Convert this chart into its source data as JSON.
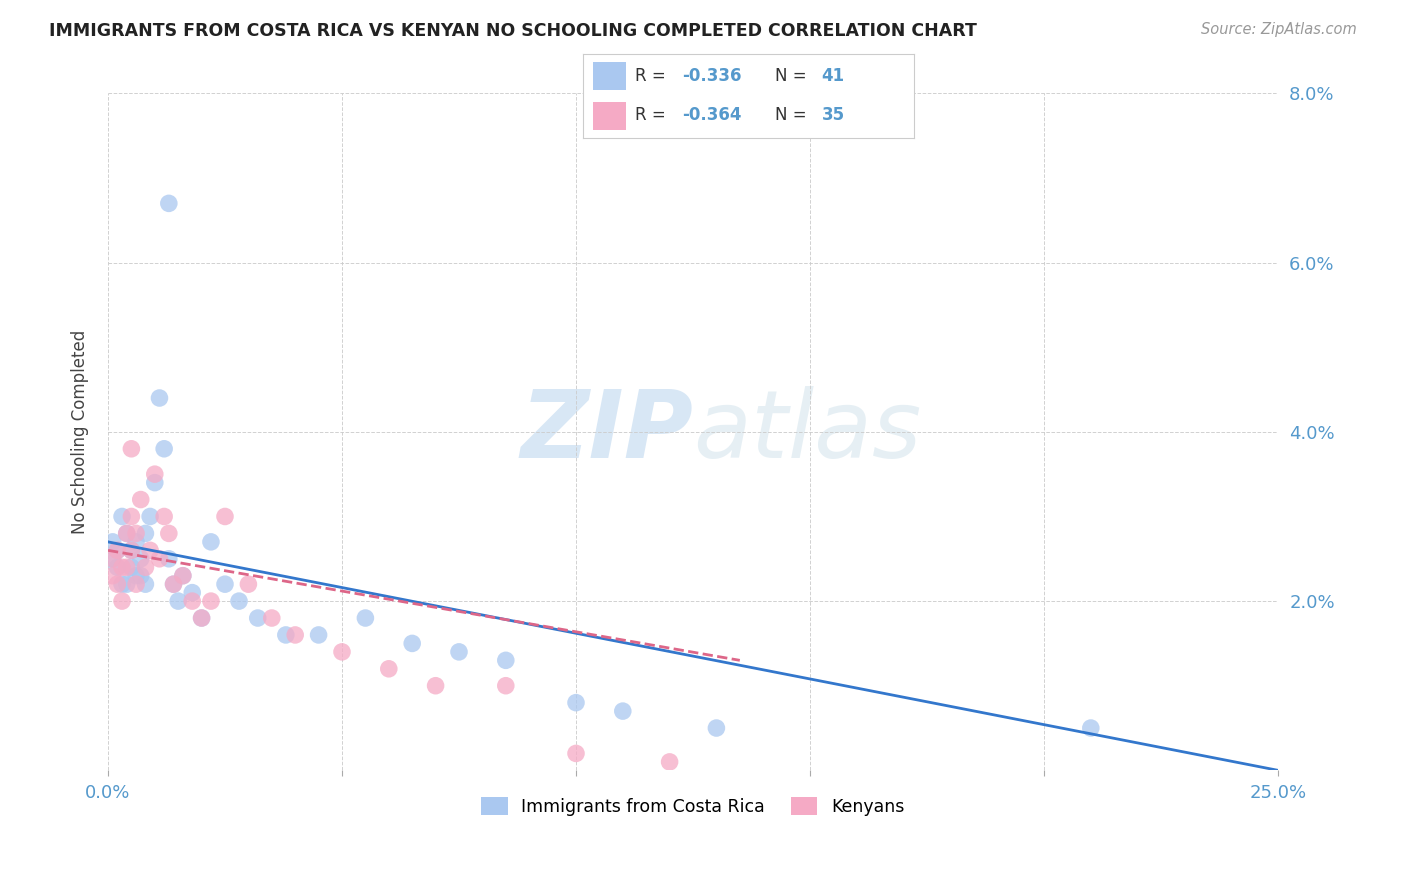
{
  "title": "IMMIGRANTS FROM COSTA RICA VS KENYAN NO SCHOOLING COMPLETED CORRELATION CHART",
  "source": "Source: ZipAtlas.com",
  "ylabel": "No Schooling Completed",
  "xlim": [
    0.0,
    0.25
  ],
  "ylim": [
    0.0,
    0.08
  ],
  "xtick_positions": [
    0.0,
    0.05,
    0.1,
    0.15,
    0.2,
    0.25
  ],
  "ytick_positions": [
    0.0,
    0.02,
    0.04,
    0.06,
    0.08
  ],
  "xtick_labels": [
    "0.0%",
    "",
    "",
    "",
    "",
    "25.0%"
  ],
  "ytick_labels_right": [
    "",
    "2.0%",
    "4.0%",
    "6.0%",
    "8.0%"
  ],
  "legend_label1": "Immigrants from Costa Rica",
  "legend_label2": "Kenyans",
  "r1": -0.336,
  "n1": 41,
  "r2": -0.364,
  "n2": 35,
  "color1": "#aac8f0",
  "color2": "#f5aac5",
  "trendline1_color": "#3377cc",
  "trendline2_color": "#dd6688",
  "background_color": "#ffffff",
  "watermark_zip": "ZIP",
  "watermark_atlas": "atlas",
  "scatter1_x": [
    0.001,
    0.001,
    0.002,
    0.002,
    0.003,
    0.003,
    0.004,
    0.004,
    0.005,
    0.005,
    0.006,
    0.006,
    0.007,
    0.007,
    0.008,
    0.008,
    0.009,
    0.01,
    0.011,
    0.012,
    0.013,
    0.014,
    0.015,
    0.016,
    0.018,
    0.02,
    0.022,
    0.025,
    0.028,
    0.032,
    0.038,
    0.045,
    0.055,
    0.065,
    0.075,
    0.085,
    0.1,
    0.11,
    0.13,
    0.21,
    0.013
  ],
  "scatter1_y": [
    0.027,
    0.025,
    0.024,
    0.026,
    0.022,
    0.03,
    0.022,
    0.028,
    0.024,
    0.026,
    0.027,
    0.023,
    0.025,
    0.023,
    0.028,
    0.022,
    0.03,
    0.034,
    0.044,
    0.038,
    0.025,
    0.022,
    0.02,
    0.023,
    0.021,
    0.018,
    0.027,
    0.022,
    0.02,
    0.018,
    0.016,
    0.016,
    0.018,
    0.015,
    0.014,
    0.013,
    0.008,
    0.007,
    0.005,
    0.005,
    0.067
  ],
  "scatter2_x": [
    0.001,
    0.001,
    0.002,
    0.002,
    0.003,
    0.003,
    0.004,
    0.004,
    0.005,
    0.005,
    0.006,
    0.006,
    0.007,
    0.008,
    0.009,
    0.01,
    0.011,
    0.012,
    0.013,
    0.014,
    0.016,
    0.018,
    0.02,
    0.022,
    0.025,
    0.03,
    0.035,
    0.04,
    0.05,
    0.06,
    0.07,
    0.085,
    0.1,
    0.12,
    0.005
  ],
  "scatter2_y": [
    0.025,
    0.023,
    0.026,
    0.022,
    0.024,
    0.02,
    0.028,
    0.024,
    0.03,
    0.026,
    0.028,
    0.022,
    0.032,
    0.024,
    0.026,
    0.035,
    0.025,
    0.03,
    0.028,
    0.022,
    0.023,
    0.02,
    0.018,
    0.02,
    0.03,
    0.022,
    0.018,
    0.016,
    0.014,
    0.012,
    0.01,
    0.01,
    0.002,
    0.001,
    0.038
  ],
  "trend1_x": [
    0.0,
    0.25
  ],
  "trend1_y": [
    0.027,
    0.0
  ],
  "trend2_x": [
    0.0,
    0.135
  ],
  "trend2_y": [
    0.026,
    0.013
  ]
}
